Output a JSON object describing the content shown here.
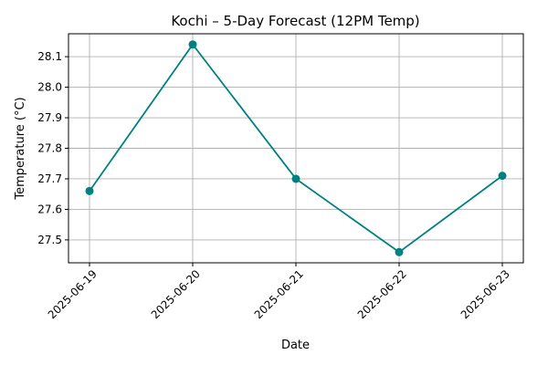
{
  "chart_data": {
    "type": "line",
    "title": "Kochi – 5-Day Forecast (12PM Temp)",
    "xlabel": "Date",
    "ylabel": "Temperature (°C)",
    "categories": [
      "2025-06-19",
      "2025-06-20",
      "2025-06-21",
      "2025-06-22",
      "2025-06-23"
    ],
    "series": [
      {
        "values": [
          27.66,
          28.14,
          27.7,
          27.46,
          27.71
        ]
      }
    ],
    "yticks": [
      "27.5",
      "27.6",
      "27.7",
      "27.8",
      "27.9",
      "28.0",
      "28.1"
    ],
    "ylim": [
      27.425,
      28.175
    ],
    "grid": true,
    "color": "#008080",
    "marker": "circle"
  }
}
